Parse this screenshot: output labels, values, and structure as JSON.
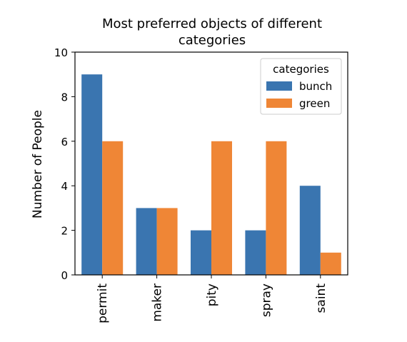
{
  "chart_data": {
    "type": "bar",
    "title_line1": "Most preferred objects of different",
    "title_line2": "categories",
    "xlabel": "",
    "ylabel": "Number of People",
    "categories": [
      "permit",
      "maker",
      "pity",
      "spray",
      "saint"
    ],
    "series": [
      {
        "name": "bunch",
        "values": [
          9,
          3,
          2,
          2,
          4
        ],
        "color": "#3a75b0"
      },
      {
        "name": "green",
        "values": [
          6,
          3,
          6,
          6,
          1
        ],
        "color": "#ef8636"
      }
    ],
    "ylim": [
      0,
      10
    ],
    "yticks": [
      0,
      2,
      4,
      6,
      8,
      10
    ],
    "legend": {
      "title": "categories",
      "placement": "top-right"
    },
    "grid": false
  }
}
